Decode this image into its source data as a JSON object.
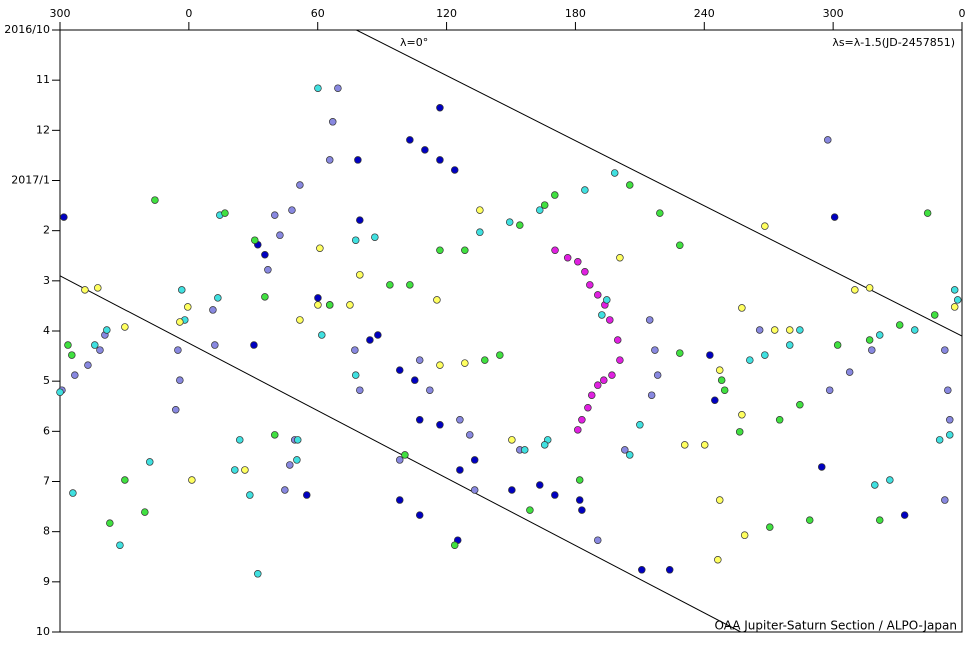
{
  "chart_data": {
    "type": "scatter",
    "xlim": [
      -60,
      360
    ],
    "xticks": [
      {
        "value": -60,
        "label": "300"
      },
      0,
      60,
      120,
      180,
      240,
      300,
      {
        "value": 360,
        "label": "0"
      }
    ],
    "ylim": [
      12,
      0
    ],
    "yticks": [
      {
        "value": 0,
        "label": "2016/10"
      },
      {
        "value": 1,
        "label": "11"
      },
      {
        "value": 2,
        "label": "12"
      },
      {
        "value": 3,
        "label": "2017/1"
      },
      {
        "value": 4,
        "label": "2"
      },
      {
        "value": 5,
        "label": "3"
      },
      {
        "value": 6,
        "label": "4"
      },
      {
        "value": 7,
        "label": "5"
      },
      {
        "value": 8,
        "label": "6"
      },
      {
        "value": 9,
        "label": "7"
      },
      {
        "value": 10,
        "label": "8"
      },
      {
        "value": 11,
        "label": "9"
      },
      {
        "value": 12,
        "label": "10"
      }
    ],
    "annotations": [
      "λ=0°",
      "λs=λ-1.5(JD-2457851)",
      "OAA Jupiter-Saturn Section / ALPO-Japan"
    ],
    "lines": [
      {
        "color": "#000000",
        "x": [
          78,
          360
        ],
        "y": [
          0,
          6.1
        ]
      },
      {
        "color": "#000000",
        "x": [
          -60,
          257
        ],
        "y": [
          4.9,
          12
        ]
      }
    ],
    "series": [
      {
        "color": "#e020e0",
        "x": [
          170.5,
          176.4,
          181.1,
          184.4,
          186.7,
          190.4,
          193.7,
          196,
          199.7,
          200.7,
          197,
          193.2,
          190.4,
          187.6,
          185.8,
          183,
          181.1
        ],
        "y": [
          4.39,
          4.54,
          4.62,
          4.82,
          5.08,
          5.28,
          5.48,
          5.78,
          6.18,
          6.58,
          6.88,
          6.98,
          7.08,
          7.28,
          7.53,
          7.77,
          7.97
        ]
      },
      {
        "color": "#8888e0",
        "x": [
          -59.1,
          -53.1,
          -47,
          -41.4,
          -39.1,
          -5.1,
          -4.2,
          -6.1,
          11.2,
          12.1,
          36.8,
          42.4,
          48,
          51.7,
          69.4,
          67,
          65.6,
          40,
          77.3,
          79.6,
          107.5,
          112.2,
          126.2,
          130.8,
          49.3,
          47,
          44.7,
          98.2,
          214.6,
          217,
          218.3,
          215.5,
          203,
          190.4,
          298.4,
          307.7,
          318,
          352,
          353.4,
          354.3,
          352,
          297.5,
          133.1,
          154.1,
          265.8
        ],
        "y": [
          7.18,
          6.88,
          6.68,
          6.38,
          6.08,
          6.38,
          6.98,
          7.57,
          5.58,
          6.28,
          4.78,
          4.09,
          3.59,
          3.09,
          1.16,
          1.83,
          2.59,
          3.69,
          6.38,
          7.18,
          6.58,
          7.18,
          7.77,
          8.07,
          8.17,
          8.67,
          9.17,
          8.57,
          5.78,
          6.38,
          6.88,
          7.28,
          8.37,
          10.17,
          7.18,
          6.82,
          6.38,
          6.38,
          7.18,
          7.77,
          9.37,
          2.19,
          9.17,
          8.37,
          5.98
        ]
      },
      {
        "color": "#0000c0",
        "x": [
          -58.2,
          32.1,
          35.4,
          60.1,
          65.6,
          78.7,
          79.6,
          102.9,
          109.9,
          116.9,
          116.9,
          123.8,
          88,
          98.2,
          105.2,
          107.5,
          116.9,
          126.2,
          98.2,
          107.5,
          133.1,
          150.4,
          163.4,
          170.4,
          182,
          183,
          210.9,
          223.9,
          242.6,
          244.9,
          294.7,
          300.7,
          333.3,
          30.3,
          54.9,
          84.3,
          125.2
        ],
        "y": [
          3.73,
          4.28,
          4.48,
          5.34,
          5.48,
          2.59,
          3.79,
          2.19,
          2.39,
          2.59,
          1.55,
          2.79,
          6.08,
          6.78,
          6.98,
          7.77,
          7.87,
          8.77,
          9.37,
          9.67,
          8.57,
          9.17,
          9.07,
          9.27,
          9.37,
          9.57,
          10.76,
          10.76,
          6.48,
          7.38,
          8.71,
          3.73,
          9.67,
          6.28,
          9.27,
          6.18,
          10.17
        ]
      },
      {
        "color": "#40e0e0",
        "x": [
          -60,
          -54,
          -43.8,
          -38.2,
          -3.3,
          13.5,
          14.4,
          -1.9,
          23.7,
          21.4,
          28.4,
          50.7,
          50.3,
          60.1,
          61.9,
          77.7,
          77.7,
          86.6,
          135.5,
          149.4,
          163.4,
          184.4,
          198.3,
          192.3,
          194.6,
          167.1,
          156.4,
          165.7,
          205.3,
          210,
          261.2,
          268.2,
          279.8,
          284.5,
          321.7,
          338,
          356.6,
          358,
          319.4,
          326.4,
          349.6,
          354.3,
          32.1,
          -32.1,
          -18.2
        ],
        "y": [
          7.22,
          9.23,
          6.28,
          5.98,
          5.18,
          5.34,
          3.69,
          5.78,
          8.17,
          8.77,
          9.27,
          8.17,
          8.57,
          1.16,
          6.08,
          6.88,
          4.19,
          4.13,
          4.03,
          3.83,
          3.59,
          3.19,
          2.85,
          5.68,
          5.38,
          8.17,
          8.37,
          8.27,
          8.47,
          7.87,
          6.58,
          6.48,
          6.28,
          5.98,
          6.08,
          5.98,
          5.18,
          5.38,
          9.07,
          8.97,
          8.17,
          8.07,
          10.84,
          10.27,
          8.61
        ]
      },
      {
        "color": "#40e040",
        "x": [
          -56.3,
          -54.5,
          -15.8,
          -36.8,
          -20.5,
          16.8,
          30.7,
          35.4,
          65.6,
          93.6,
          102.9,
          116.9,
          128.5,
          137.8,
          144.8,
          154.1,
          165.7,
          170.4,
          205.3,
          219.3,
          228.6,
          228.6,
          249.5,
          248.1,
          256.5,
          275.1,
          284.5,
          302.1,
          317,
          331,
          344,
          347.3,
          270.5,
          289.1,
          321.7,
          158.8,
          182,
          123.8,
          100.6,
          -29.8,
          40
        ],
        "y": [
          6.28,
          6.48,
          3.39,
          9.83,
          9.61,
          3.65,
          4.19,
          5.32,
          5.48,
          5.08,
          5.08,
          4.39,
          4.39,
          6.58,
          6.48,
          3.89,
          3.49,
          3.29,
          3.09,
          3.65,
          4.29,
          6.44,
          7.18,
          6.98,
          8.01,
          7.77,
          7.47,
          6.28,
          6.18,
          5.88,
          3.65,
          5.68,
          9.91,
          9.77,
          9.77,
          9.57,
          8.97,
          10.27,
          8.47,
          8.97,
          8.07
        ]
      },
      {
        "color": "#ffff60",
        "x": [
          -48.4,
          -42.4,
          -29.8,
          -0.5,
          -4.2,
          51.7,
          60.1,
          61,
          75,
          79.6,
          115.5,
          116.9,
          128.5,
          135.5,
          150.4,
          200.7,
          230.9,
          240.2,
          247.2,
          257.5,
          257.5,
          247.2,
          268.2,
          272.8,
          279.8,
          310.1,
          317,
          356.6,
          258.8,
          246.3,
          26.1,
          1.4
        ],
        "y": [
          5.18,
          5.14,
          5.92,
          5.52,
          5.82,
          5.78,
          5.48,
          4.35,
          5.48,
          4.88,
          5.38,
          6.68,
          6.64,
          3.59,
          8.17,
          4.54,
          8.27,
          8.27,
          9.37,
          5.54,
          7.67,
          6.78,
          3.91,
          5.98,
          5.98,
          5.18,
          5.14,
          5.52,
          10.07,
          10.56,
          8.77,
          8.97
        ]
      }
    ]
  }
}
